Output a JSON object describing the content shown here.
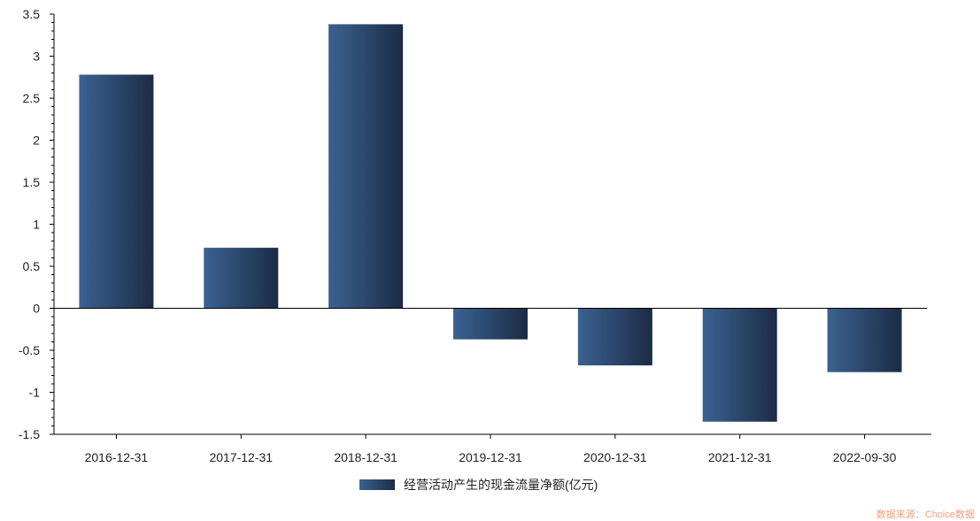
{
  "chart_data": {
    "type": "bar",
    "categories": [
      "2016-12-31",
      "2017-12-31",
      "2018-12-31",
      "2019-12-31",
      "2020-12-31",
      "2021-12-31",
      "2022-09-30"
    ],
    "series": [
      {
        "name": "经营活动产生的现金流量净额(亿元)",
        "values": [
          2.78,
          0.72,
          3.38,
          -0.37,
          -0.68,
          -1.35,
          -0.76
        ]
      }
    ],
    "ylim": [
      -1.5,
      3.5
    ],
    "yticks": [
      3.5,
      3,
      2.5,
      2,
      1.5,
      1,
      0.5,
      0,
      -0.5,
      -1,
      -1.5
    ],
    "legend": "bottom-center",
    "colors": {
      "bar_light": "#3a6291",
      "bar_dark": "#1c2b45",
      "axis": "#000000"
    }
  },
  "source_note": "数据来源：Choice数据"
}
